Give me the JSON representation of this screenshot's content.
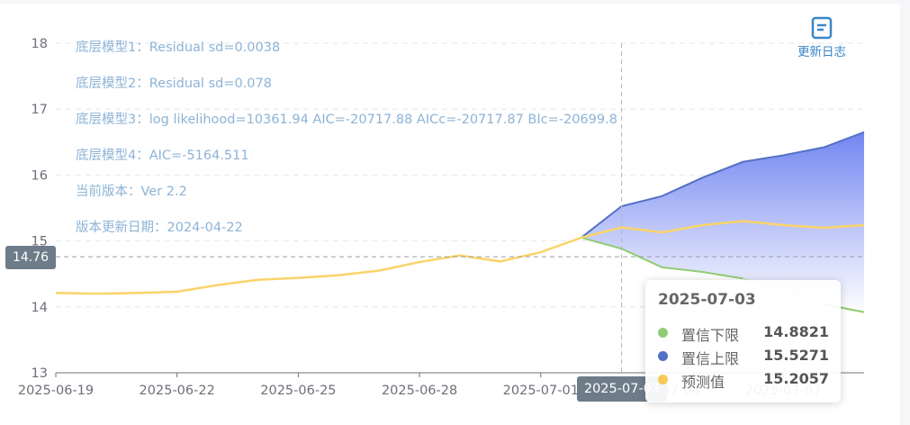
{
  "info_lines": [
    "底层模型1：Residual sd=0.0038",
    "底层模型2：Residual sd=0.078",
    "底层模型3：log likelihood=10361.94 AIC=-20717.88 AICc=-20717.87 BIc=-20699.8",
    "底层模型4：AIC=-5164.511",
    "当前版本：Ver 2.2",
    "版本更新日期：2024-04-22"
  ],
  "toolbar": {
    "changelog_label": "更新日志",
    "changelog_icon": "document-list-icon"
  },
  "axis_pointer": {
    "y_label": "14.76",
    "x_label": "2025-07-03"
  },
  "tooltip": {
    "date": "2025-07-03",
    "rows": [
      {
        "name": "置信下限",
        "value": "14.8821",
        "color": "#91cc75"
      },
      {
        "name": "置信上限",
        "value": "15.5271",
        "color": "#5470c6"
      },
      {
        "name": "预测值",
        "value": "15.2057",
        "color": "#fac858"
      }
    ]
  },
  "colors": {
    "lower": "#91cc75",
    "upper": "#5470c6",
    "forecast": "#fad46a",
    "band_top": "#6b7ff0",
    "band_bottom": "#ffffff"
  },
  "chart_data": {
    "type": "line",
    "x": [
      "2025-06-19",
      "2025-06-20",
      "2025-06-21",
      "2025-06-22",
      "2025-06-23",
      "2025-06-24",
      "2025-06-25",
      "2025-06-26",
      "2025-06-27",
      "2025-06-28",
      "2025-06-29",
      "2025-06-30",
      "2025-07-01",
      "2025-07-02",
      "2025-07-03",
      "2025-07-04",
      "2025-07-05",
      "2025-07-06",
      "2025-07-07",
      "2025-07-08",
      "2025-07-09"
    ],
    "xticks": [
      "2025-06-19",
      "2025-06-22",
      "2025-06-25",
      "2025-06-28",
      "2025-07-01",
      "2025-07-04",
      "2025-07-07"
    ],
    "series": [
      {
        "name": "预测值",
        "values": [
          14.21,
          14.2,
          14.21,
          14.23,
          14.33,
          14.41,
          14.44,
          14.48,
          14.55,
          14.68,
          14.78,
          14.69,
          14.83,
          15.05,
          15.2057,
          15.13,
          15.24,
          15.3,
          15.24,
          15.2,
          15.24
        ]
      },
      {
        "name": "置信下限",
        "values": [
          null,
          null,
          null,
          null,
          null,
          null,
          null,
          null,
          null,
          null,
          null,
          null,
          null,
          15.05,
          14.8821,
          14.6,
          14.53,
          14.43,
          14.23,
          14.04,
          13.92
        ]
      },
      {
        "name": "置信上限",
        "values": [
          null,
          null,
          null,
          null,
          null,
          null,
          null,
          null,
          null,
          null,
          null,
          null,
          null,
          15.05,
          15.5271,
          15.68,
          15.96,
          16.2,
          16.3,
          16.42,
          16.65
        ]
      }
    ],
    "ylim": [
      13,
      18
    ],
    "yticks": [
      13,
      14,
      15,
      16,
      17,
      18
    ],
    "grid": true
  }
}
